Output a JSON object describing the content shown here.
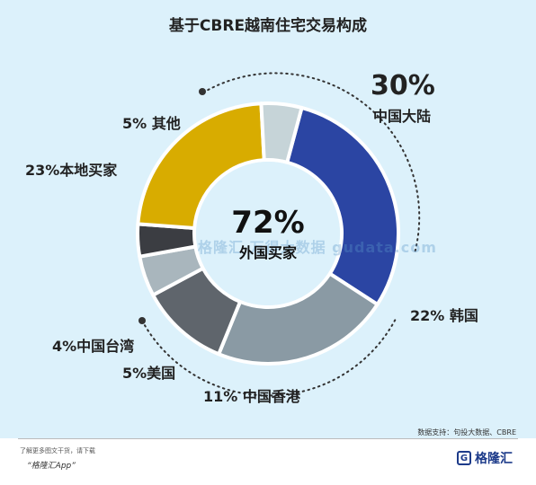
{
  "chart_data": {
    "type": "pie",
    "title": "基于CBRE越南住宅交易构成",
    "center": {
      "value": "72%",
      "label": "外国买家"
    },
    "slices": [
      {
        "pct": "30%",
        "name": "中国大陆",
        "value": 30,
        "color": "#2b45a3"
      },
      {
        "pct": "22%",
        "name": "韩国",
        "value": 22,
        "color": "#8a9aa4"
      },
      {
        "pct": "11%",
        "name": "中国香港",
        "value": 11,
        "color": "#5f656c"
      },
      {
        "pct": "5%",
        "name": "美国",
        "value": 5,
        "color": "#a9b6bd"
      },
      {
        "pct": "4%",
        "name": "中国台湾",
        "value": 4,
        "color": "#3b3d42"
      },
      {
        "pct": "23%",
        "name": "本地买家",
        "value": 23,
        "color": "#d8ac00"
      },
      {
        "pct": "5%",
        "name": "其他",
        "value": 5,
        "color": "#c6d4d8"
      }
    ]
  },
  "watermark": "格隆汇  万得大数据  gudata.com",
  "source": "数据支持：句投大数据、CBRE",
  "footer": {
    "note": "了解更多图文干货，请下载",
    "app": "“格隆汇App”",
    "logo_mark": "G",
    "logo_text": "格隆汇"
  }
}
